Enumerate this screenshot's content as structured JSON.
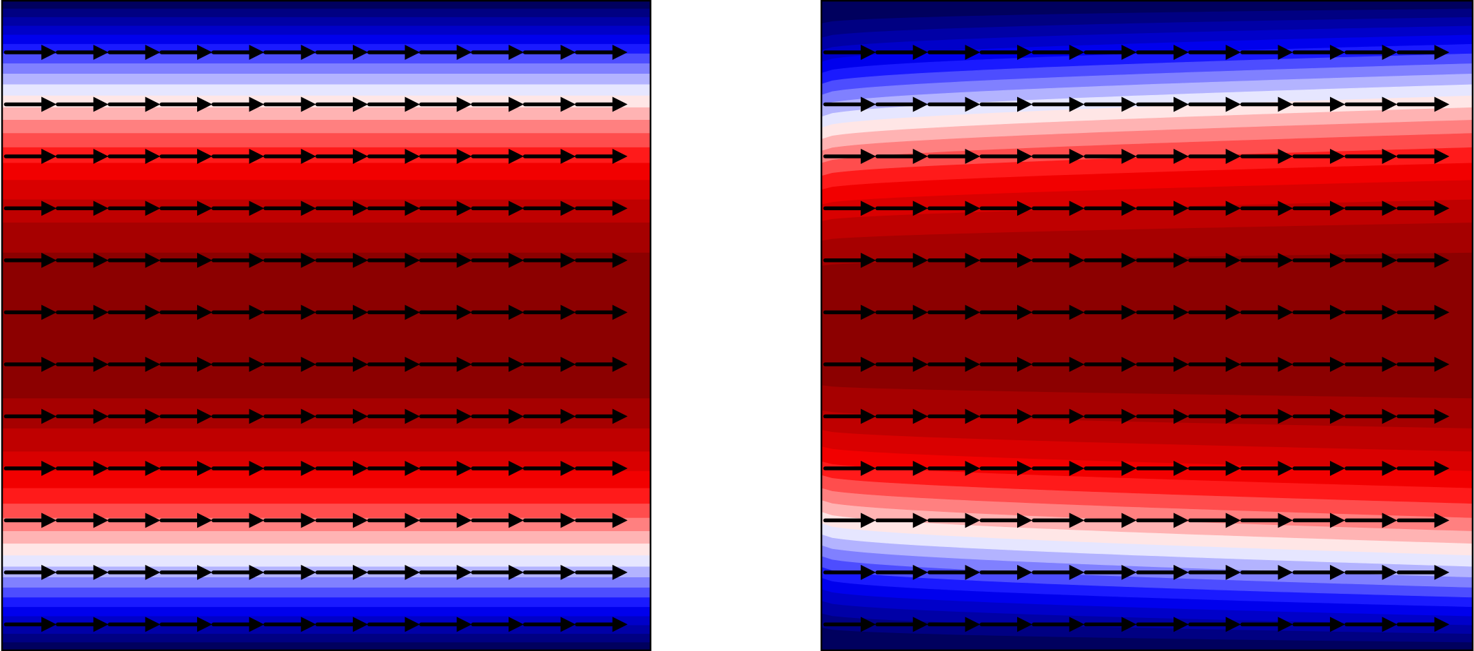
{
  "chart_data": [
    {
      "type": "contour",
      "colors": [
        "#00005e",
        "#000082",
        "#0000a6",
        "#0000c9",
        "#0000ed",
        "#1a1aff",
        "#4d4dff",
        "#8080ff",
        "#b3b3ff",
        "#e6e6ff",
        "#ffe6e6",
        "#ffb3b3",
        "#ff8080",
        "#ff4d4d",
        "#ff1a1a",
        "#f20000",
        "#d90000",
        "#bf0000",
        "#a60000",
        "#8c0000"
      ]
    },
    {
      "type": "contour",
      "colors": [
        "#00005e",
        "#000082",
        "#0000a6",
        "#0000c9",
        "#0000ed",
        "#1a1aff",
        "#4d4dff",
        "#8080ff",
        "#b3b3ff",
        "#e6e6ff",
        "#ffe6e6",
        "#ffb3b3",
        "#ff8080",
        "#ff4d4d",
        "#ff1a1a",
        "#f20000",
        "#d90000",
        "#bf0000",
        "#a60000",
        "#8c0000"
      ]
    }
  ]
}
